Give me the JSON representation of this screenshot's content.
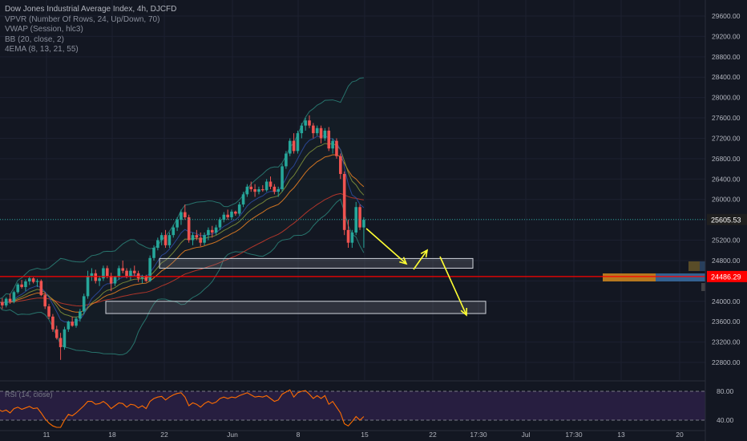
{
  "legend": {
    "title": "Dow Jones Industrial Average Index, 4h, DJCFD",
    "indicators": [
      "VPVR (Number Of Rows, 24, Up/Down, 70)",
      "VWAP (Session, hlc3)",
      "BB (20, close, 2)",
      "4EMA (8, 13, 21, 55)"
    ]
  },
  "price_axis": {
    "ticks": [
      "29600.00",
      "29200.00",
      "28800.00",
      "28400.00",
      "28000.00",
      "27600.00",
      "27200.00",
      "26800.00",
      "26400.00",
      "26000.00",
      "25200.00",
      "24800.00",
      "24000.00",
      "23600.00",
      "23200.00",
      "22800.00"
    ],
    "current_price": "25605.53",
    "line_price": "24486.29"
  },
  "time_axis": {
    "labels": [
      "11",
      "18",
      "22",
      "Jun",
      "8",
      "15",
      "22",
      "17:30",
      "Jul",
      "17:30",
      "13",
      "20"
    ]
  },
  "rsi": {
    "label": "RSI (14, close)",
    "upper": "80.00",
    "lower": "40.00"
  },
  "colors": {
    "background": "#131722",
    "bull": "#26a69a",
    "bear": "#ef5350",
    "red_line": "#ff0000",
    "arrow": "#ffff33",
    "rsi_line": "#ff6d00",
    "rsi_band": "#2a1f44"
  },
  "chart_data": {
    "type": "candlestick",
    "symbol": "DJCFD",
    "timeframe": "4h",
    "yrange": [
      22600,
      29800
    ],
    "candles": [
      [
        24095,
        24120,
        23900,
        23980
      ],
      [
        23980,
        24060,
        23850,
        23920
      ],
      [
        23920,
        24080,
        23880,
        24050
      ],
      [
        24050,
        24150,
        23950,
        23990
      ],
      [
        23990,
        24210,
        23960,
        24180
      ],
      [
        24180,
        24360,
        24150,
        24330
      ],
      [
        24330,
        24420,
        24250,
        24280
      ],
      [
        24280,
        24430,
        24200,
        24390
      ],
      [
        24390,
        24480,
        24320,
        24450
      ],
      [
        24450,
        24470,
        24350,
        24380
      ],
      [
        24380,
        24440,
        24280,
        24400
      ],
      [
        24400,
        24430,
        24100,
        24120
      ],
      [
        24120,
        24180,
        23850,
        23900
      ],
      [
        23900,
        23950,
        23650,
        23700
      ],
      [
        23700,
        23750,
        23400,
        23450
      ],
      [
        23450,
        23520,
        23250,
        23280
      ],
      [
        23280,
        23380,
        22850,
        23100
      ],
      [
        23100,
        23500,
        23050,
        23450
      ],
      [
        23450,
        23620,
        23400,
        23600
      ],
      [
        23600,
        23700,
        23500,
        23520
      ],
      [
        23520,
        23700,
        23480,
        23660
      ],
      [
        23660,
        23850,
        23600,
        23800
      ],
      [
        23800,
        24150,
        23750,
        24100
      ],
      [
        24100,
        24600,
        24050,
        24500
      ],
      [
        24500,
        24650,
        24400,
        24550
      ],
      [
        24550,
        24620,
        24350,
        24400
      ],
      [
        24400,
        24500,
        24300,
        24450
      ],
      [
        24450,
        24700,
        24400,
        24650
      ],
      [
        24650,
        24700,
        24450,
        24500
      ],
      [
        24500,
        24560,
        24200,
        24350
      ],
      [
        24350,
        24500,
        24300,
        24480
      ],
      [
        24480,
        24700,
        24420,
        24650
      ],
      [
        24650,
        24800,
        24550,
        24600
      ],
      [
        24600,
        24650,
        24450,
        24500
      ],
      [
        24500,
        24650,
        24420,
        24600
      ],
      [
        24600,
        24700,
        24500,
        24550
      ],
      [
        24550,
        24600,
        24380,
        24450
      ],
      [
        24450,
        24520,
        24350,
        24500
      ],
      [
        24500,
        24520,
        24380,
        24400
      ],
      [
        24400,
        24900,
        24380,
        24850
      ],
      [
        24850,
        25100,
        24800,
        25050
      ],
      [
        25050,
        25250,
        25000,
        25200
      ],
      [
        25200,
        25350,
        25100,
        25300
      ],
      [
        25300,
        25400,
        25050,
        25100
      ],
      [
        25100,
        25350,
        25050,
        25300
      ],
      [
        25300,
        25500,
        25250,
        25450
      ],
      [
        25450,
        25650,
        25380,
        25600
      ],
      [
        25600,
        25800,
        25500,
        25750
      ],
      [
        25750,
        25900,
        25600,
        25650
      ],
      [
        25650,
        25700,
        25150,
        25200
      ],
      [
        25200,
        25350,
        25100,
        25300
      ],
      [
        25300,
        25400,
        25200,
        25250
      ],
      [
        25250,
        25350,
        25080,
        25150
      ],
      [
        25150,
        25350,
        25100,
        25300
      ],
      [
        25300,
        25450,
        25200,
        25400
      ],
      [
        25400,
        25480,
        25250,
        25350
      ],
      [
        25350,
        25500,
        25300,
        25450
      ],
      [
        25450,
        25650,
        25400,
        25600
      ],
      [
        25600,
        25750,
        25550,
        25700
      ],
      [
        25700,
        25800,
        25600,
        25650
      ],
      [
        25650,
        25800,
        25600,
        25760
      ],
      [
        25760,
        25780,
        25680,
        25720
      ],
      [
        25720,
        25950,
        25680,
        25900
      ],
      [
        25900,
        26150,
        25850,
        26100
      ],
      [
        26100,
        26300,
        26050,
        26250
      ],
      [
        26250,
        26350,
        26150,
        26200
      ],
      [
        26200,
        26300,
        26050,
        26150
      ],
      [
        26150,
        26250,
        26100,
        26200
      ],
      [
        26200,
        26280,
        26150,
        26180
      ],
      [
        26180,
        26400,
        26150,
        26350
      ],
      [
        26350,
        26450,
        26200,
        26250
      ],
      [
        26250,
        26300,
        26100,
        26150
      ],
      [
        26150,
        26250,
        26050,
        26200
      ],
      [
        26200,
        26700,
        26150,
        26650
      ],
      [
        26650,
        26950,
        26600,
        26900
      ],
      [
        26900,
        27200,
        26850,
        27150
      ],
      [
        27150,
        27300,
        26900,
        26950
      ],
      [
        26950,
        27350,
        26900,
        27300
      ],
      [
        27300,
        27500,
        27200,
        27450
      ],
      [
        27450,
        27600,
        27350,
        27550
      ],
      [
        27550,
        27650,
        27400,
        27450
      ],
      [
        27450,
        27500,
        27200,
        27300
      ],
      [
        27300,
        27450,
        27250,
        27400
      ],
      [
        27400,
        27450,
        27100,
        27200
      ],
      [
        27200,
        27400,
        27150,
        27350
      ],
      [
        27350,
        27420,
        26950,
        27000
      ],
      [
        27000,
        27200,
        26900,
        27150
      ],
      [
        27150,
        27200,
        26800,
        26850
      ],
      [
        26850,
        26900,
        26400,
        26500
      ],
      [
        26500,
        26550,
        25300,
        25400
      ],
      [
        25400,
        25600,
        25050,
        25150
      ],
      [
        25150,
        25400,
        25050,
        25350
      ],
      [
        25350,
        25950,
        25300,
        25850
      ],
      [
        25850,
        25900,
        25400,
        25450
      ],
      [
        25450,
        25650,
        25050,
        25600
      ]
    ],
    "horizontal_lines": [
      {
        "price": 25605.53,
        "style": "dotted"
      },
      {
        "price": 24486.29,
        "style": "solid"
      }
    ],
    "zones": [
      {
        "price_top": 24840,
        "price_bottom": 24650
      },
      {
        "price_top": 24000,
        "price_bottom": 23760
      }
    ],
    "rsi_values": [
      55,
      52,
      54,
      50,
      56,
      58,
      55,
      57,
      59,
      56,
      57,
      50,
      42,
      36,
      32,
      30,
      30,
      40,
      48,
      46,
      50,
      55,
      60,
      66,
      66,
      62,
      63,
      66,
      62,
      56,
      60,
      64,
      63,
      58,
      62,
      61,
      57,
      60,
      56,
      66,
      70,
      72,
      73,
      68,
      72,
      75,
      77,
      78,
      72,
      60,
      64,
      62,
      58,
      63,
      66,
      63,
      65,
      70,
      72,
      70,
      72,
      71,
      74,
      76,
      78,
      75,
      72,
      73,
      72,
      74,
      70,
      66,
      68,
      76,
      79,
      82,
      72,
      78,
      80,
      81,
      76,
      70,
      74,
      70,
      74,
      62,
      66,
      58,
      50,
      35,
      32,
      38,
      45,
      40,
      45
    ]
  }
}
